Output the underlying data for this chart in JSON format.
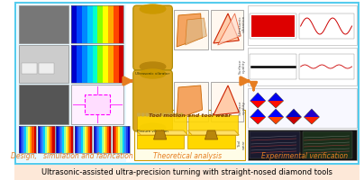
{
  "title": "Ultrasonic-assisted ultra-precision turning with straight-nosed diamond tools",
  "title_bg": "#fde8d8",
  "title_fontsize": 6.0,
  "title_color": "#000000",
  "panel_border_color": "#55ccee",
  "panel1_label": "Design,   simulation and fabrication",
  "panel2_label": "Theoretical analysis",
  "panel3_label": "Experimental verification",
  "label_color": "#e67e22",
  "label_fontsize": 5.5,
  "arrow_color": "#e67e22",
  "bg_main": "#ffffff",
  "panel1_bg": "#e8f8ff",
  "tool_motion_text": "Tool motion and tool wear",
  "tool_motion_color": "#7B3F00",
  "red_rect_color": "#dd0000",
  "yellow_gold": "#DAA520",
  "yellow_bright": "#FFD700",
  "fem_colors": [
    "#0000cc",
    "#0044ff",
    "#0088ff",
    "#00ccff",
    "#00ffcc",
    "#88ff00",
    "#ffff00",
    "#ffaa00",
    "#ff4400",
    "#cc0000"
  ],
  "surf_colors_top": [
    "#0000ff",
    "#0055ff",
    "#00aaff",
    "#00ffff",
    "#55ff55",
    "#aaff00",
    "#ffff00",
    "#ffaa00",
    "#ff5500",
    "#cc0000"
  ],
  "surf_colors_bot": [
    "#0000cc",
    "#0033ff",
    "#0077ff",
    "#00bbff",
    "#00ffaa",
    "#77ff00",
    "#ffff00",
    "#ffbb00",
    "#ff6600",
    "#cc2200"
  ]
}
